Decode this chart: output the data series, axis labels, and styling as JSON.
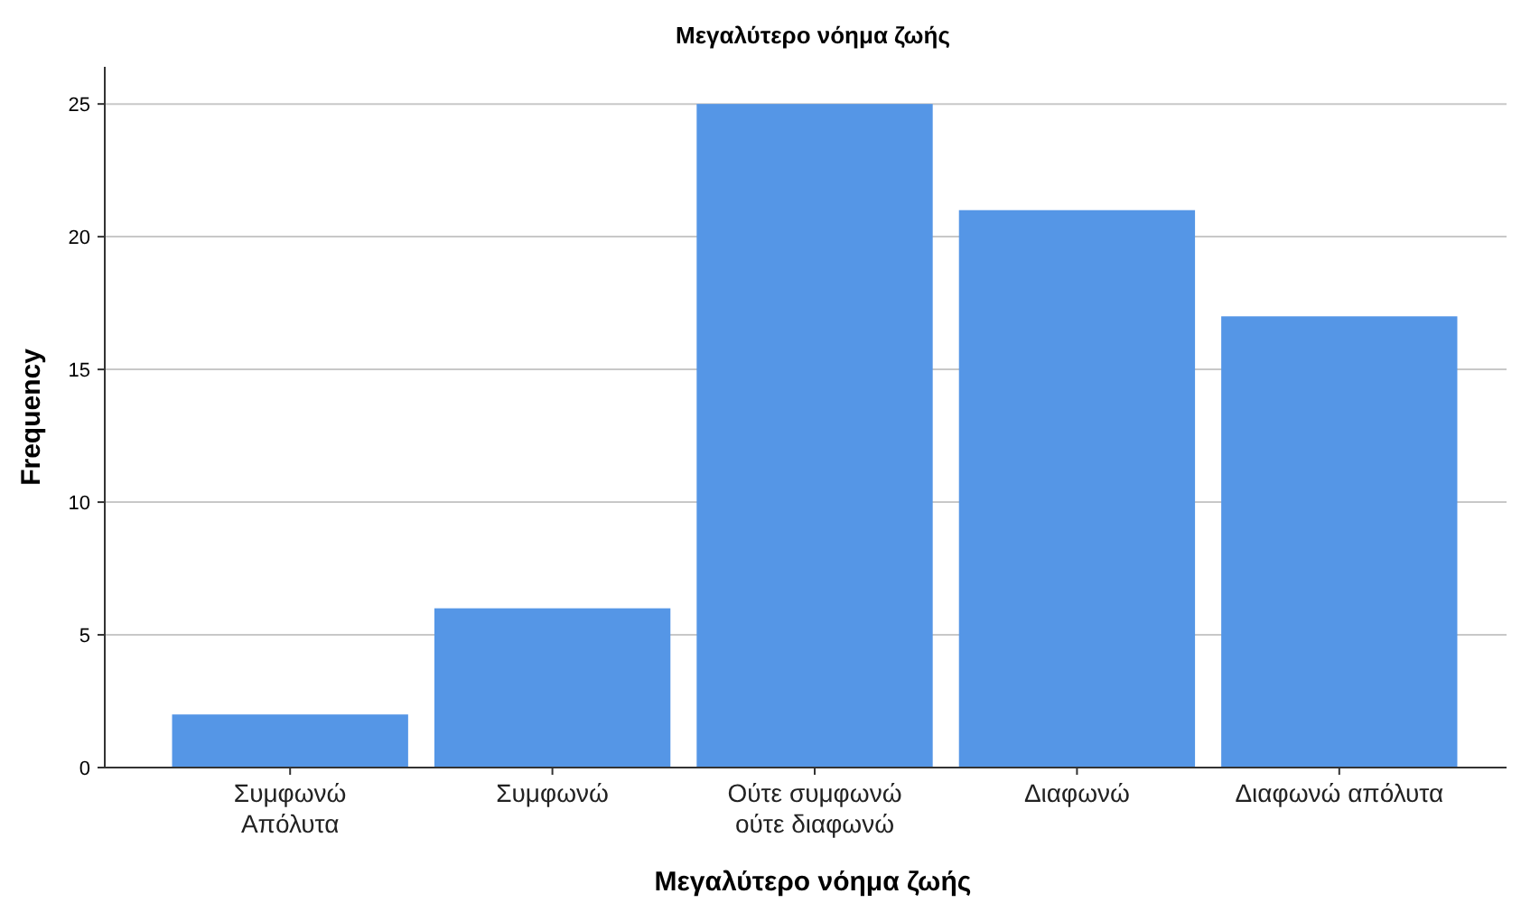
{
  "chart_data": {
    "type": "bar",
    "title": "Μεγαλύτερο νόημα ζωής",
    "xlabel": "Μεγαλύτερο νόημα ζωής",
    "ylabel": "Frequency",
    "categories": [
      "Συμφωνώ\nΑπόλυτα",
      "Συμφωνώ",
      "Ούτε συμφωνώ\nούτε διαφωνώ",
      "Διαφωνώ",
      "Διαφωνώ απόλυτα"
    ],
    "values": [
      2,
      6,
      25,
      21,
      17
    ],
    "color": "#5596e6",
    "ylim": [
      0,
      26.4
    ],
    "yticks": [
      0,
      5,
      10,
      15,
      20,
      25
    ],
    "grid": "y"
  }
}
